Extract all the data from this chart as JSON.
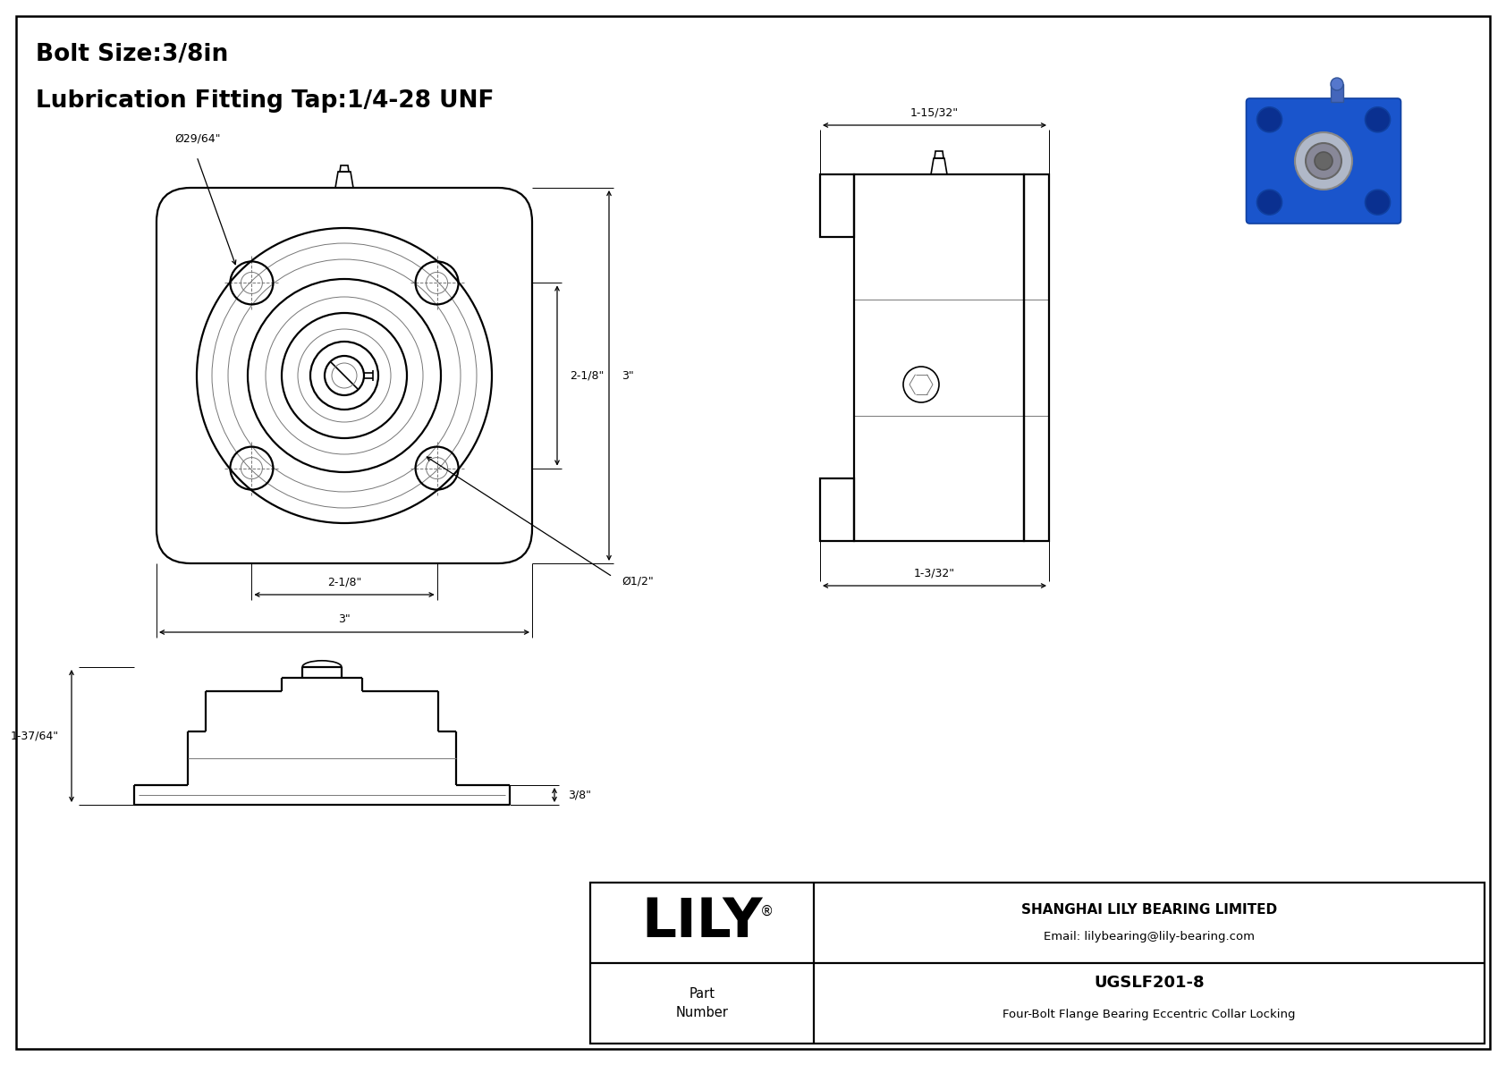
{
  "bg_color": "#ffffff",
  "line_color": "#000000",
  "title_line1": "Bolt Size:3/8in",
  "title_line2": "Lubrication Fitting Tap:1/4-28 UNF",
  "company_name": "SHANGHAI LILY BEARING LIMITED",
  "company_email": "Email: lilybearing@lily-bearing.com",
  "brand": "LILY",
  "reg_sym": "®",
  "part_number": "UGSLF201-8",
  "part_desc": "Four-Bolt Flange Bearing Eccentric Collar Locking",
  "dim_phi_bolt": "Ø29/64\"",
  "dim_height_inner": "2-1/8\"",
  "dim_height_outer": "3\"",
  "dim_width_inner": "2-1/8\"",
  "dim_width_outer": "3\"",
  "dim_phi_bore": "Ø1/2\"",
  "dim_side_width": "1-15/32\"",
  "dim_side_depth1": "1-3/32\"",
  "dim_bottom_height": "1-37/64\"",
  "dim_bottom_depth": "3/8\""
}
